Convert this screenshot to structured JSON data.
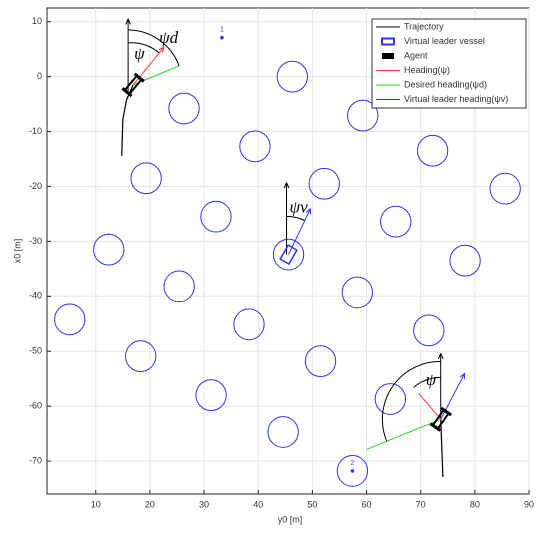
{
  "chart_data": {
    "type": "line",
    "xlabel": "y0 [m]",
    "ylabel": "x0 [m]",
    "xlim": [
      1,
      90
    ],
    "ylim": [
      -76,
      12.5
    ],
    "xticks": [
      10,
      20,
      30,
      40,
      50,
      60,
      70,
      80,
      90
    ],
    "yticks": [
      10,
      0,
      -10,
      -20,
      -30,
      -40,
      -50,
      -60,
      -70
    ],
    "grid": true,
    "series": [
      {
        "name": "Trajectory",
        "color": "#000000",
        "x": [
          14.8,
          15.0,
          15.7,
          16.9
        ],
        "y": [
          -14.4,
          -7.8,
          -4.2,
          -1.5
        ]
      },
      {
        "name": "Trajectory",
        "color": "#000000",
        "x": [
          74.1,
          73.7
        ],
        "y": [
          -72.9,
          -62.4
        ]
      }
    ],
    "obstacles": {
      "color": "#3333ee",
      "radius": 2.8,
      "x": [
        46.3,
        26.3,
        59.3,
        39.4,
        72.2,
        19.3,
        52.2,
        85.6,
        32.2,
        65.4,
        12.4,
        45.6,
        78.2,
        25.4,
        58.3,
        5.2,
        38.3,
        71.5,
        18.3,
        51.5,
        31.3,
        64.4,
        44.6,
        57.4
      ],
      "y": [
        0,
        -5.8,
        -7.1,
        -12.7,
        -13.5,
        -18.5,
        -19.5,
        -20.4,
        -25.5,
        -26.4,
        -31.5,
        -32.4,
        -33.5,
        -38.2,
        -39.3,
        -44.2,
        -45.1,
        -46.2,
        -50.9,
        -51.8,
        -58.0,
        -58.7,
        -64.7,
        -71.8
      ]
    },
    "targets": {
      "labels": [
        "1",
        "2"
      ],
      "x": [
        33.3,
        57.4
      ],
      "y": [
        7.1,
        -71.8
      ]
    },
    "agents": {
      "x": [
        16.9,
        73.7
      ],
      "y": [
        -1.5,
        -62.4
      ]
    },
    "leader": {
      "x": 45.6,
      "y": -32.4
    },
    "annotations": [
      "ψd",
      "ψ",
      "ψv",
      "ψ"
    ],
    "legend": {
      "position": "upper right",
      "entries": [
        "Trajectory",
        "Virtual leader vessel",
        "Agent",
        "Heading(ψ)",
        "Desired heading(ψd)",
        "Virtual leader heading(ψv)"
      ]
    }
  }
}
